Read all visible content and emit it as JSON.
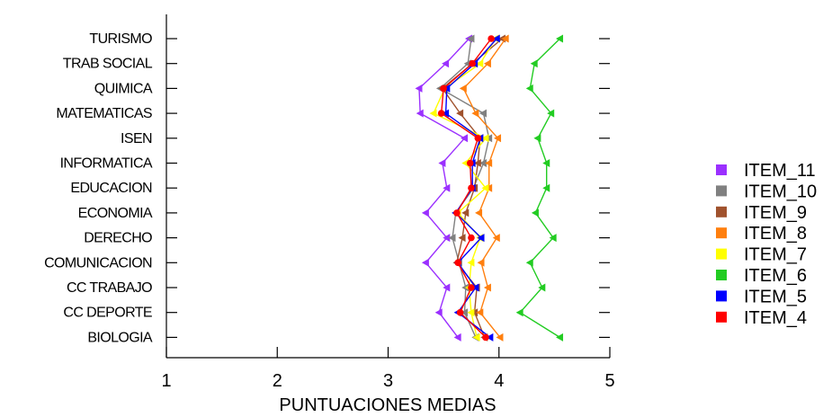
{
  "chart_data": {
    "type": "line",
    "orientation": "horizontal",
    "xlabel": "PUNTUACIONES MEDIAS",
    "ylabel": "",
    "xlim": [
      1,
      5
    ],
    "xticks": [
      "1",
      "2",
      "3",
      "4",
      "5"
    ],
    "categories": [
      "TURISMO",
      "TRAB SOCIAL",
      "QUIMICA",
      "MATEMATICAS",
      "ISEN",
      "INFORMATICA",
      "EDUCACION",
      "ECONOMIA",
      "DERECHO",
      "COMUNICACION",
      "CC TRABAJO",
      "CC DEPORTE",
      "BIOLOGIA"
    ],
    "legend_position": "right",
    "grid": false,
    "series": [
      {
        "name": "ITEM_11",
        "color": "#9b30ff",
        "values": [
          3.73,
          3.52,
          3.28,
          3.29,
          3.69,
          3.49,
          3.53,
          3.34,
          3.53,
          3.34,
          3.53,
          3.46,
          3.63
        ]
      },
      {
        "name": "ITEM_10",
        "color": "#808080",
        "values": [
          3.75,
          3.72,
          3.47,
          3.86,
          3.91,
          3.86,
          3.77,
          3.61,
          3.58,
          3.64,
          3.7,
          3.69,
          3.79
        ]
      },
      {
        "name": "ITEM_9",
        "color": "#a0522d",
        "values": [
          4.03,
          3.76,
          3.49,
          3.65,
          3.83,
          3.81,
          3.78,
          3.7,
          3.67,
          3.62,
          3.8,
          3.78,
          3.87
        ]
      },
      {
        "name": "ITEM_8",
        "color": "#ff7f0e",
        "values": [
          4.06,
          3.9,
          3.68,
          3.79,
          3.99,
          3.91,
          3.91,
          3.82,
          3.98,
          3.84,
          3.9,
          3.83,
          4.01
        ]
      },
      {
        "name": "ITEM_7",
        "color": "#ffff00",
        "values": [
          3.97,
          3.83,
          3.51,
          3.41,
          3.88,
          3.7,
          3.88,
          3.63,
          3.83,
          3.75,
          3.73,
          3.75,
          3.8
        ]
      },
      {
        "name": "ITEM_6",
        "color": "#22cc22",
        "values": [
          4.55,
          4.32,
          4.28,
          4.47,
          4.35,
          4.43,
          4.43,
          4.33,
          4.49,
          4.28,
          4.39,
          4.19,
          4.55
        ]
      },
      {
        "name": "ITEM_5",
        "color": "#0000ff",
        "values": [
          3.98,
          3.78,
          3.53,
          3.52,
          3.83,
          3.76,
          3.76,
          3.61,
          3.84,
          3.63,
          3.79,
          3.63,
          3.92
        ]
      },
      {
        "name": "ITEM_4",
        "color": "#ff0000",
        "values": [
          3.93,
          3.76,
          3.5,
          3.48,
          3.81,
          3.74,
          3.75,
          3.62,
          3.75,
          3.63,
          3.75,
          3.65,
          3.88
        ]
      }
    ]
  }
}
